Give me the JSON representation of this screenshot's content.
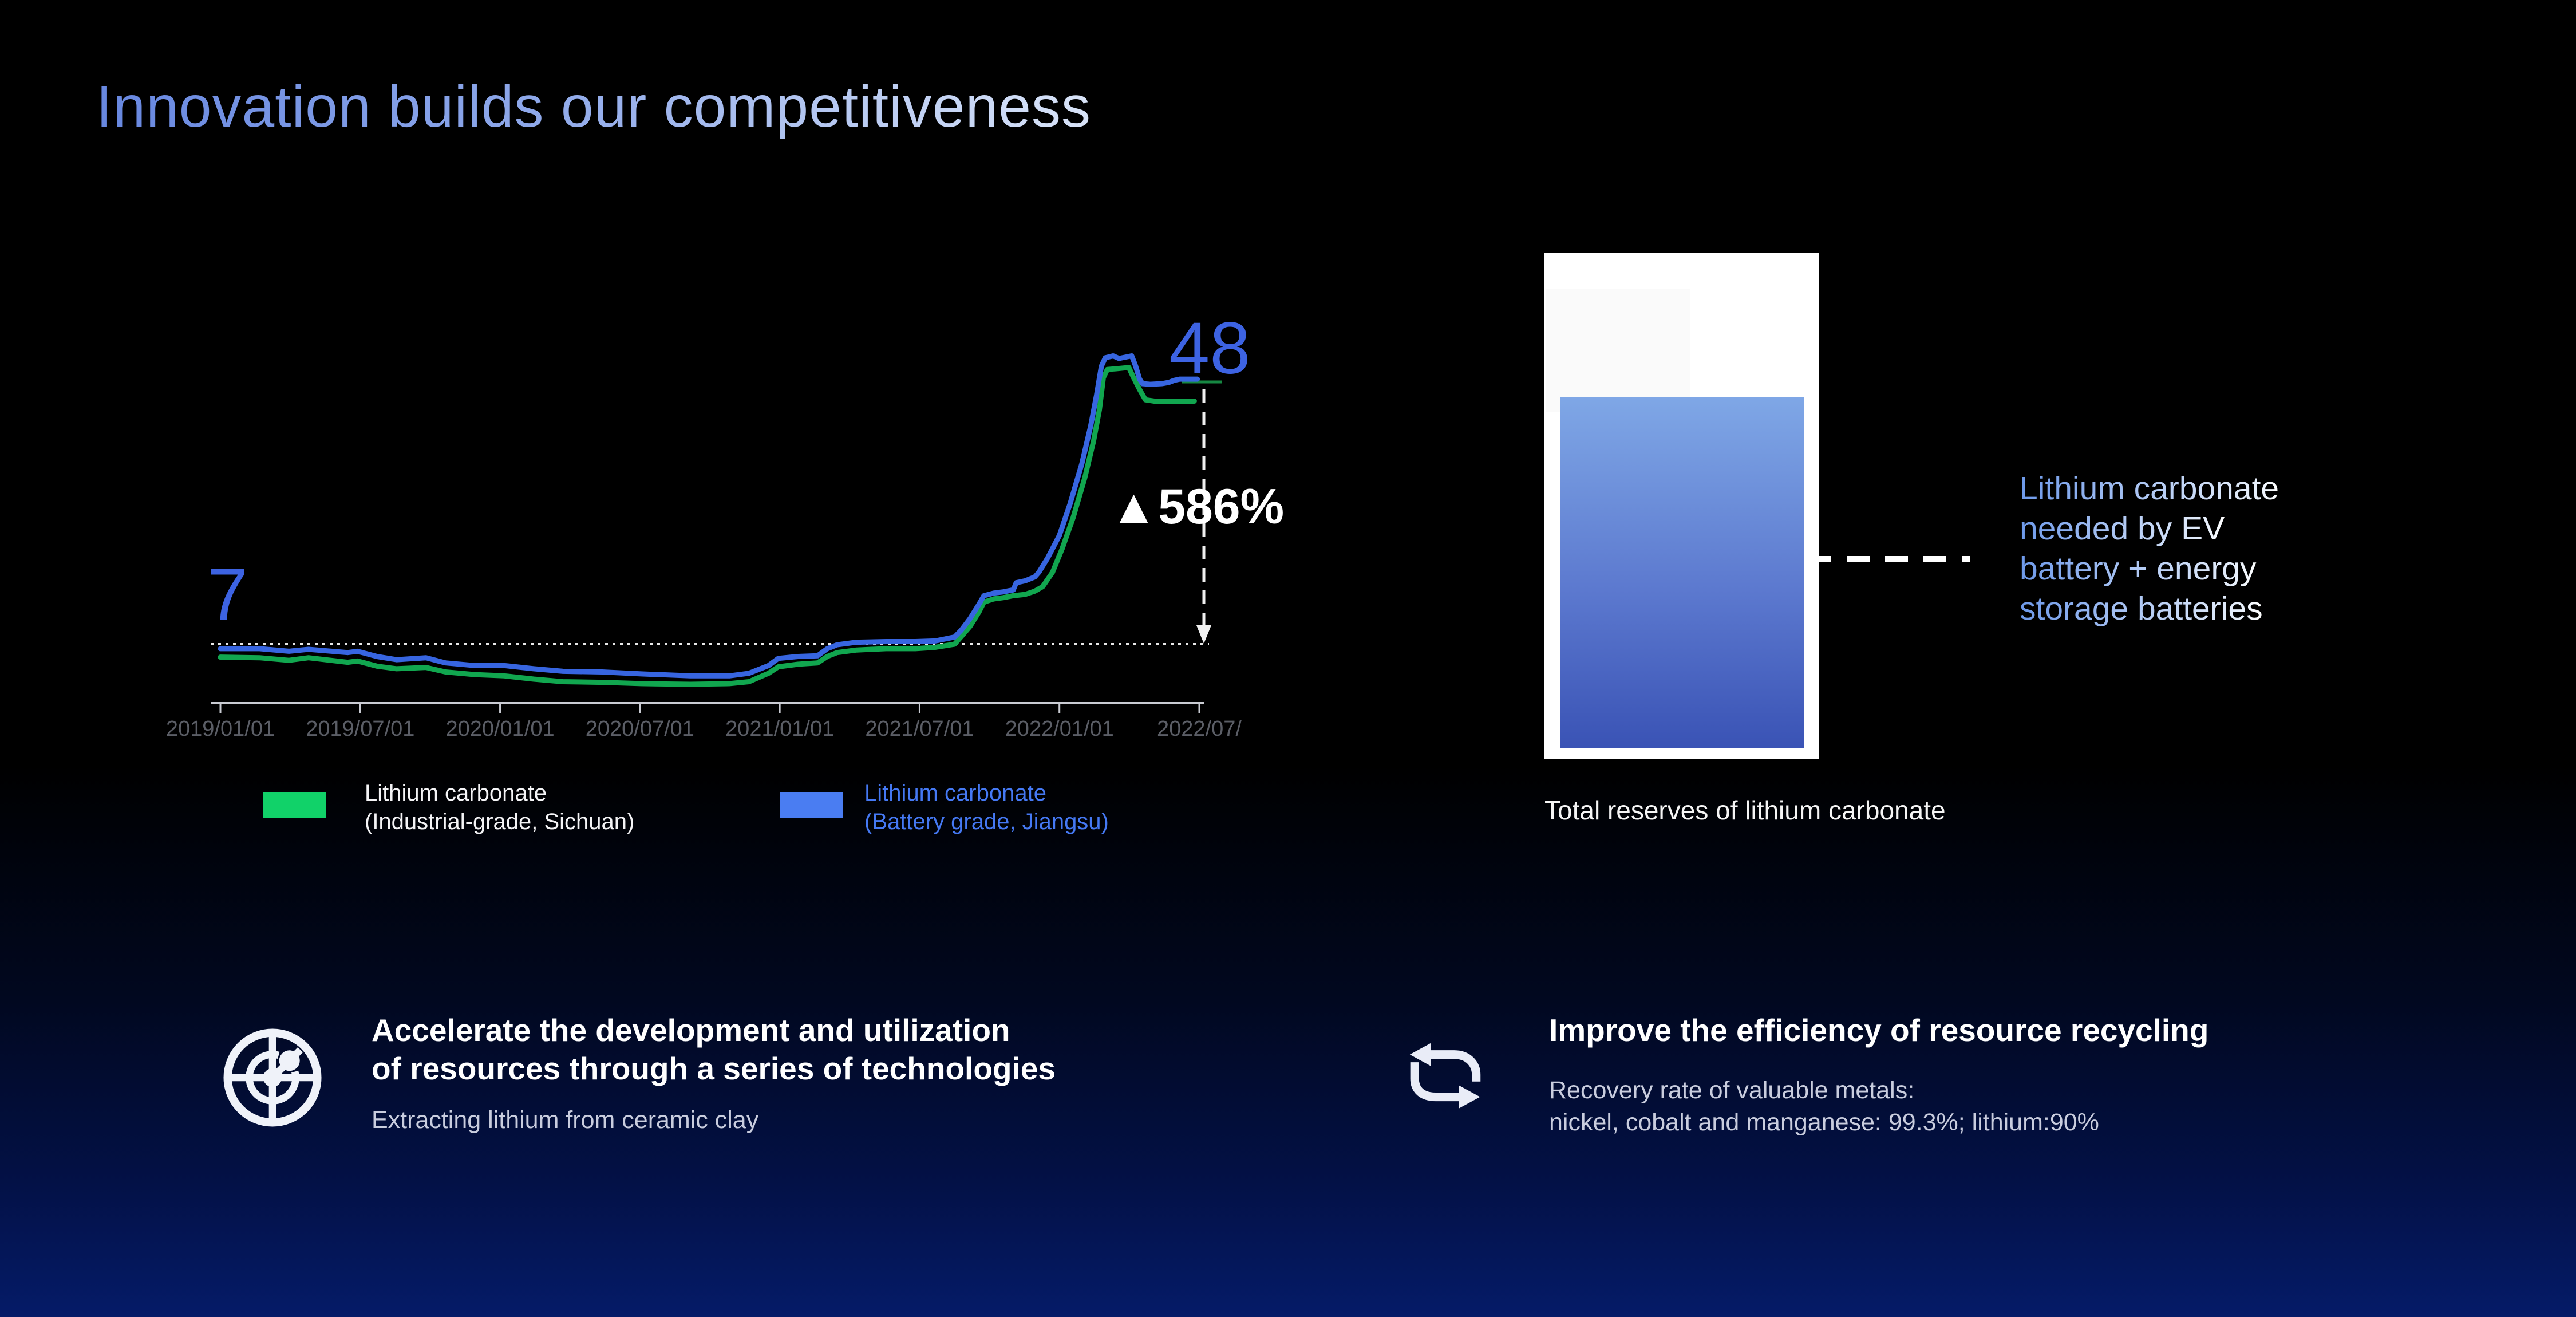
{
  "page": {
    "title": "Innovation builds our competitiveness"
  },
  "price_chart": {
    "start_label": "7",
    "end_label": "48",
    "change_label": "▲586%",
    "legend": [
      {
        "swatch_color": "#11D269",
        "lines": [
          "Lithium carbonate",
          "(Industrial-grade, Sichuan)"
        ]
      },
      {
        "swatch_color": "#4A7DF2",
        "lines": [
          "Lithium carbonate",
          "(Battery grade, Jiangsu)"
        ]
      }
    ]
  },
  "chart_data": {
    "type": "line",
    "title": "",
    "xlabel": "",
    "ylabel": "",
    "y_axis_visible": false,
    "x_tick_labels": [
      "2019/01/01",
      "2019/07/01",
      "2020/01/01",
      "2020/07/01",
      "2021/01/01",
      "2021/07/01",
      "2022/01/01",
      "2022/07/"
    ],
    "annotations": {
      "start_value": 7,
      "end_value": 48,
      "change": "+586%"
    },
    "series": [
      {
        "name": "Lithium carbonate (Industrial-grade, Sichuan)",
        "color": "#11A64F",
        "points": [
          [
            0,
            5
          ],
          [
            0.04,
            4.9
          ],
          [
            0.07,
            4.5
          ],
          [
            0.09,
            4.9
          ],
          [
            0.13,
            4.2
          ],
          [
            0.14,
            4.4
          ],
          [
            0.16,
            3.6
          ],
          [
            0.18,
            3.2
          ],
          [
            0.21,
            3.4
          ],
          [
            0.23,
            2.7
          ],
          [
            0.26,
            2.3
          ],
          [
            0.29,
            2.1
          ],
          [
            0.32,
            1.6
          ],
          [
            0.35,
            1.2
          ],
          [
            0.39,
            1.1
          ],
          [
            0.43,
            0.9
          ],
          [
            0.48,
            0.8
          ],
          [
            0.52,
            0.9
          ],
          [
            0.54,
            1.2
          ],
          [
            0.56,
            2.5
          ],
          [
            0.57,
            3.5
          ],
          [
            0.59,
            3.9
          ],
          [
            0.61,
            4.1
          ],
          [
            0.62,
            5.1
          ],
          [
            0.63,
            5.7
          ],
          [
            0.65,
            6.1
          ],
          [
            0.68,
            6.3
          ],
          [
            0.71,
            6.3
          ],
          [
            0.73,
            6.5
          ],
          [
            0.75,
            7
          ],
          [
            0.757,
            8.2
          ],
          [
            0.766,
            9.8
          ],
          [
            0.775,
            12
          ],
          [
            0.78,
            13.5
          ],
          [
            0.79,
            14
          ],
          [
            0.8,
            14.2
          ],
          [
            0.81,
            14.5
          ],
          [
            0.822,
            14.7
          ],
          [
            0.832,
            15.2
          ],
          [
            0.84,
            15.9
          ],
          [
            0.85,
            18.1
          ],
          [
            0.86,
            21.8
          ],
          [
            0.871,
            26.5
          ],
          [
            0.883,
            32.7
          ],
          [
            0.892,
            38.4
          ],
          [
            0.898,
            43.3
          ],
          [
            0.902,
            48.2
          ],
          [
            0.906,
            49.5
          ],
          [
            0.915,
            49.6
          ],
          [
            0.928,
            49.8
          ],
          [
            0.933,
            48.2
          ],
          [
            0.939,
            46.4
          ],
          [
            0.945,
            44.8
          ],
          [
            0.954,
            44.6
          ],
          [
            0.995,
            44.6
          ]
        ]
      },
      {
        "name": "Lithium carbonate (Battery grade, Jiangsu)",
        "color": "#3765E0",
        "points": [
          [
            0,
            6.3
          ],
          [
            0.04,
            6.3
          ],
          [
            0.07,
            5.9
          ],
          [
            0.09,
            6.2
          ],
          [
            0.13,
            5.7
          ],
          [
            0.14,
            5.9
          ],
          [
            0.16,
            5.1
          ],
          [
            0.18,
            4.6
          ],
          [
            0.21,
            4.9
          ],
          [
            0.23,
            4.1
          ],
          [
            0.26,
            3.7
          ],
          [
            0.29,
            3.7
          ],
          [
            0.32,
            3.2
          ],
          [
            0.35,
            2.8
          ],
          [
            0.39,
            2.7
          ],
          [
            0.43,
            2.4
          ],
          [
            0.48,
            2.1
          ],
          [
            0.52,
            2.1
          ],
          [
            0.54,
            2.5
          ],
          [
            0.56,
            3.7
          ],
          [
            0.57,
            4.8
          ],
          [
            0.59,
            5.1
          ],
          [
            0.61,
            5.2
          ],
          [
            0.62,
            6.3
          ],
          [
            0.63,
            6.9
          ],
          [
            0.65,
            7.3
          ],
          [
            0.68,
            7.4
          ],
          [
            0.71,
            7.4
          ],
          [
            0.73,
            7.5
          ],
          [
            0.75,
            8.1
          ],
          [
            0.757,
            9.2
          ],
          [
            0.766,
            11
          ],
          [
            0.775,
            13.2
          ],
          [
            0.78,
            14.5
          ],
          [
            0.79,
            14.9
          ],
          [
            0.8,
            15.1
          ],
          [
            0.81,
            15.4
          ],
          [
            0.813,
            16.5
          ],
          [
            0.822,
            16.8
          ],
          [
            0.832,
            17.4
          ],
          [
            0.836,
            18.1
          ],
          [
            0.845,
            20.3
          ],
          [
            0.857,
            23.8
          ],
          [
            0.868,
            28.7
          ],
          [
            0.88,
            34.9
          ],
          [
            0.889,
            40.7
          ],
          [
            0.895,
            45.5
          ],
          [
            0.9,
            50
          ],
          [
            0.904,
            51.3
          ],
          [
            0.912,
            51.6
          ],
          [
            0.918,
            51.2
          ],
          [
            0.931,
            51.6
          ],
          [
            0.935,
            50
          ],
          [
            0.939,
            48
          ],
          [
            0.942,
            47.3
          ],
          [
            0.95,
            47.2
          ],
          [
            0.962,
            47.3
          ],
          [
            0.969,
            47.5
          ],
          [
            0.974,
            47.8
          ],
          [
            0.98,
            48
          ],
          [
            0.998,
            48
          ]
        ]
      }
    ]
  },
  "reserves": {
    "caption": "Total reserves of lithium carbonate",
    "note_lines": [
      "Lithium carbonate",
      "needed by EV",
      "battery + energy",
      "storage batteries"
    ]
  },
  "sections": [
    {
      "icon": "radar-target-icon",
      "title_lines": [
        "Accelerate the development and utilization",
        "of resources through a series of technologies"
      ],
      "subtitle_lines": [
        "Extracting lithium from ceramic clay"
      ]
    },
    {
      "icon": "recycle-loop-icon",
      "title_lines": [
        "Improve the efficiency of resource recycling"
      ],
      "subtitle_lines": [
        "Recovery rate of valuable metals:",
        "nickel, cobalt and  manganese: 99.3%; lithium:90%"
      ]
    }
  ]
}
